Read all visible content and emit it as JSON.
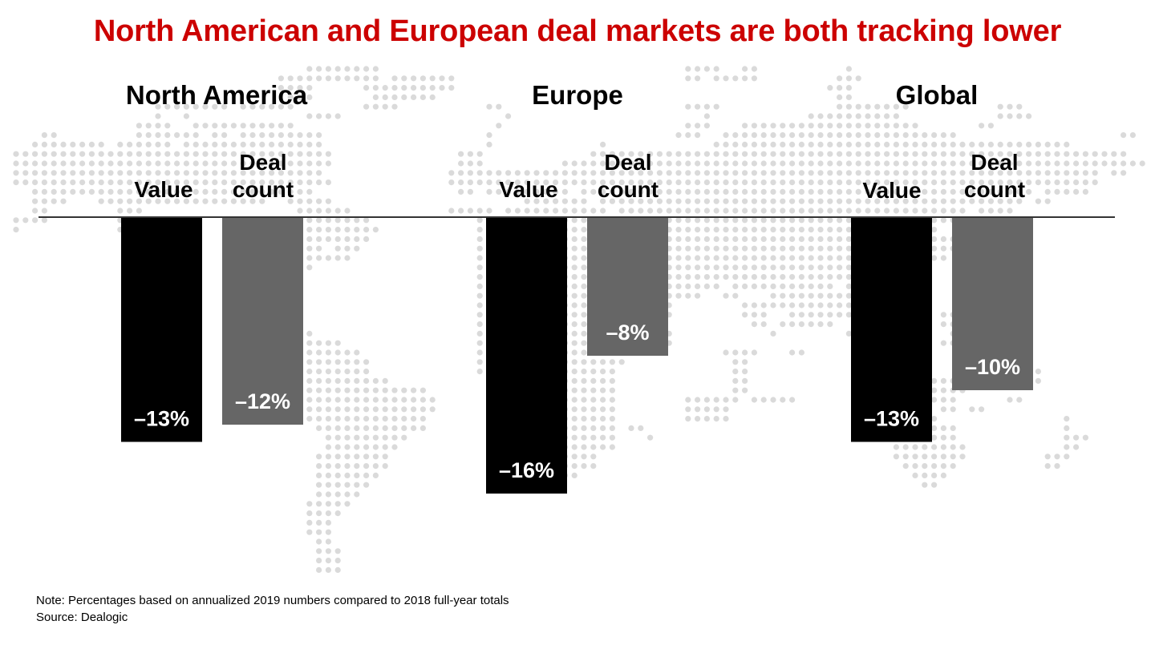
{
  "title": "North American and European deal markets are both tracking lower",
  "colors": {
    "title": "#cc0000",
    "value": "#000000",
    "deal_count": "#666666",
    "map_dot": "#dadada",
    "axis": "#333333"
  },
  "chart_data": {
    "type": "bar",
    "title": "North American and European deal markets are both tracking lower",
    "groups": [
      "North America",
      "Europe",
      "Global"
    ],
    "series": [
      {
        "name": "Value",
        "values": [
          -13,
          -16,
          -13
        ]
      },
      {
        "name": "Deal count",
        "values": [
          -12,
          -8,
          -10
        ]
      }
    ],
    "series_labels": [
      {
        "line1": "",
        "line2": "Value"
      },
      {
        "line1": "Deal",
        "line2": "count"
      }
    ],
    "data_labels": [
      [
        "–13%",
        "–12%"
      ],
      [
        "–16%",
        "–8%"
      ],
      [
        "–13%",
        "–10%"
      ]
    ],
    "unit": "%",
    "ylim": [
      -16,
      0
    ],
    "grid": false,
    "legend": "none"
  },
  "footer": {
    "note": "Note: Percentages based on annualized 2019 numbers compared to 2018 full-year totals",
    "source": "Source: Dealogic"
  }
}
